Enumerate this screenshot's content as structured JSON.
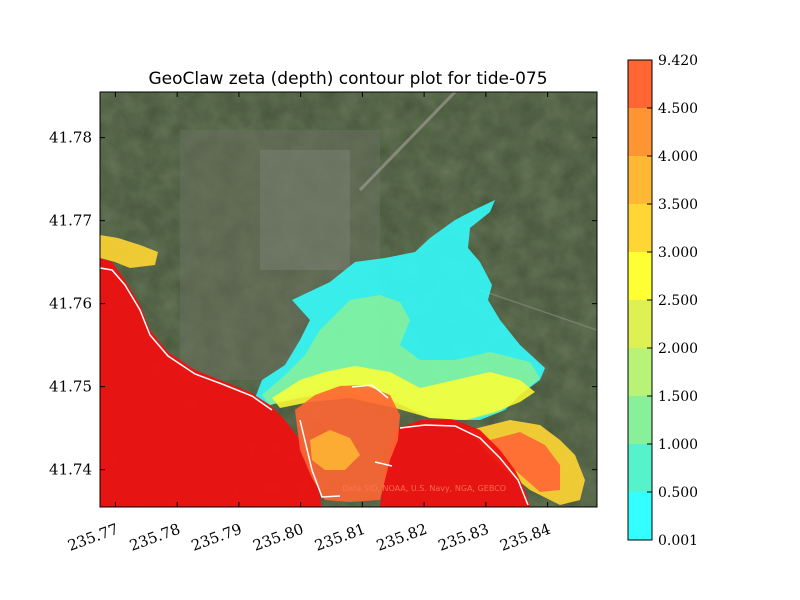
{
  "chart_data": {
    "type": "heatmap",
    "title": "GeoClaw zeta (depth) contour plot for tide-075",
    "xlabel": "",
    "ylabel": "",
    "xlim": [
      235.7675,
      235.848
    ],
    "ylim": [
      41.7355,
      41.7855
    ],
    "x_ticks": [
      "235.77",
      "235.78",
      "235.79",
      "235.80",
      "235.81",
      "235.82",
      "235.83",
      "235.84"
    ],
    "x_tick_values": [
      235.77,
      235.78,
      235.79,
      235.8,
      235.81,
      235.82,
      235.83,
      235.84
    ],
    "y_ticks": [
      "41.74",
      "41.75",
      "41.76",
      "41.77",
      "41.78"
    ],
    "y_tick_values": [
      41.74,
      41.75,
      41.76,
      41.77,
      41.78
    ],
    "tick_label_rotation": "x labels rotated ~20°",
    "grid": false,
    "background": "satellite imagery",
    "attribution": "Data SIO, NOAA, U.S. Navy, NGA, GEBCO",
    "colorbar": {
      "placement": "right",
      "levels": [
        "0.001",
        "0.500",
        "1.000",
        "1.500",
        "2.000",
        "2.500",
        "3.000",
        "3.500",
        "4.000",
        "4.500",
        "9.420"
      ],
      "level_values": [
        0.001,
        0.5,
        1.0,
        1.5,
        2.0,
        2.5,
        3.0,
        3.5,
        4.0,
        4.5,
        9.42
      ],
      "colors": [
        "#33ffff",
        "#55f2cc",
        "#88f099",
        "#b8f277",
        "#dff055",
        "#ffff33",
        "#ffd633",
        "#ffb833",
        "#ff9433",
        "#ff6633"
      ]
    }
  }
}
